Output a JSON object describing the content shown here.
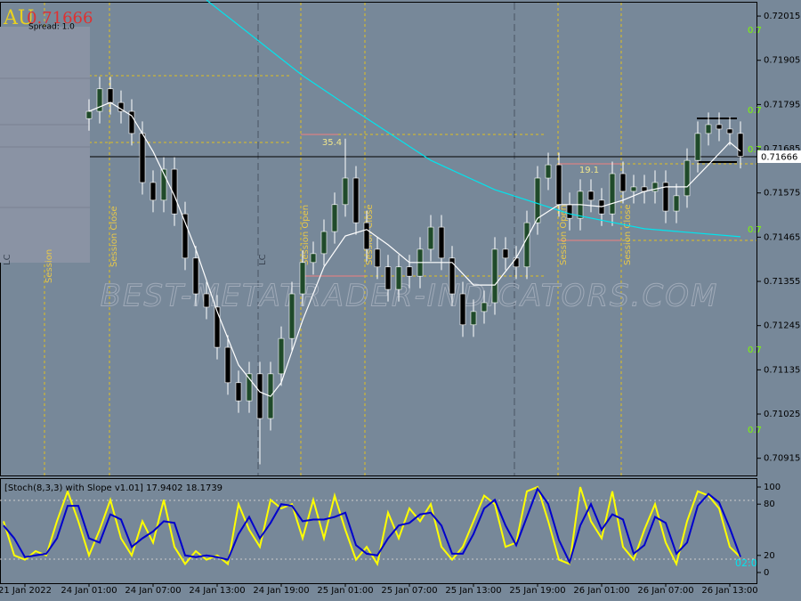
{
  "chart_data": [
    {
      "type": "candlestick",
      "symbol": "AU",
      "spread_label": "Spread: 1.0",
      "last_price": 0.71666,
      "watermark": "BEST-METATRADER-INDICATORS.COM",
      "session_labels": [
        "Session",
        "Session Close",
        "LC",
        "Session Open",
        "Session Close",
        "Session Open",
        "Session Close",
        "LC"
      ],
      "range_labels": [
        35.4,
        19.1
      ],
      "pivot_labels": [
        "0.7",
        "0.7",
        "0.7",
        "0.7",
        "0.7",
        "0.7"
      ],
      "categories": [
        null,
        null,
        "21 Jan 2022",
        null,
        null,
        null,
        null,
        null,
        "24 Jan 01:00",
        null,
        null,
        null,
        null,
        null,
        "24 Jan 07:00",
        null,
        null,
        null,
        null,
        null,
        "24 Jan 13:00",
        null,
        null,
        null,
        null,
        null,
        "24 Jan 19:00",
        null,
        null,
        null,
        null,
        null,
        "25 Jan 01:00",
        null,
        null,
        null,
        null,
        null,
        "25 Jan 07:00",
        null,
        null,
        null,
        null,
        null,
        "25 Jan 13:00",
        null,
        null,
        null,
        null,
        null,
        "25 Jan 19:00",
        null,
        null,
        null,
        null,
        null,
        "26 Jan 01:00",
        null,
        null,
        null,
        null,
        null,
        "26 Jan 07:00",
        null,
        null,
        null,
        null,
        null,
        "26 Jan 13:00",
        null
      ],
      "open": [
        null,
        null,
        null,
        null,
        null,
        null,
        null,
        null,
        0.7176,
        0.71778,
        0.71834,
        0.718,
        0.71778,
        0.71723,
        0.71601,
        0.71557,
        0.71634,
        0.71523,
        0.71413,
        0.71324,
        0.71291,
        0.71191,
        0.71103,
        0.71058,
        0.71125,
        0.71014,
        0.71125,
        0.71213,
        0.71324,
        0.71402,
        0.71424,
        0.71479,
        0.71546,
        0.71612,
        0.71501,
        0.71435,
        0.71391,
        0.71335,
        0.71391,
        0.71368,
        0.71435,
        0.7149,
        0.71413,
        0.71324,
        0.71247,
        0.7128,
        0.71302,
        0.71435,
        0.71413,
        0.71391,
        0.71501,
        0.71612,
        0.71645,
        0.71546,
        0.71512,
        0.71579,
        0.71557,
        0.71523,
        0.71623,
        0.71579,
        0.7159,
        0.71579,
        0.71601,
        0.7153,
        0.71568,
        0.71656,
        0.71723,
        0.71745,
        0.71734,
        0.71723
      ],
      "high": [
        null,
        null,
        null,
        null,
        null,
        null,
        null,
        null,
        0.71808,
        0.71864,
        0.71864,
        0.7183,
        0.71808,
        0.71753,
        0.71631,
        0.71664,
        0.71664,
        0.71553,
        0.71443,
        0.71354,
        0.71321,
        0.71221,
        0.71133,
        0.71155,
        0.71155,
        0.71155,
        0.71243,
        0.71354,
        0.71432,
        0.71454,
        0.71509,
        0.71576,
        0.7171,
        0.71642,
        0.71531,
        0.71465,
        0.71421,
        0.71421,
        0.71421,
        0.71465,
        0.7152,
        0.7152,
        0.71443,
        0.71354,
        0.7131,
        0.71332,
        0.71465,
        0.71465,
        0.71443,
        0.71531,
        0.71642,
        0.71675,
        0.71675,
        0.71576,
        0.71609,
        0.71609,
        0.71587,
        0.71653,
        0.71653,
        0.7162,
        0.7162,
        0.71631,
        0.71631,
        0.71598,
        0.71686,
        0.71753,
        0.71775,
        0.71775,
        0.71764,
        0.71753
      ],
      "low": [
        null,
        null,
        null,
        null,
        null,
        null,
        null,
        null,
        0.7173,
        0.71748,
        0.7177,
        0.71748,
        0.71693,
        0.71571,
        0.71527,
        0.71527,
        0.71493,
        0.71383,
        0.71294,
        0.71261,
        0.71161,
        0.71073,
        0.71028,
        0.71028,
        0.709,
        0.70984,
        0.71095,
        0.71183,
        0.71294,
        0.71372,
        0.71394,
        0.71449,
        0.71516,
        0.71471,
        0.71405,
        0.71361,
        0.71305,
        0.71305,
        0.71338,
        0.71338,
        0.71405,
        0.71383,
        0.71294,
        0.71217,
        0.71217,
        0.7125,
        0.71272,
        0.71383,
        0.71361,
        0.71361,
        0.71471,
        0.71582,
        0.71516,
        0.71482,
        0.71482,
        0.71527,
        0.71493,
        0.71493,
        0.71549,
        0.71549,
        0.71549,
        0.71549,
        0.715,
        0.715,
        0.71538,
        0.71626,
        0.71693,
        0.71704,
        0.71693,
        0.71636
      ],
      "close": [
        null,
        null,
        null,
        null,
        null,
        null,
        null,
        null,
        0.71778,
        0.71834,
        0.718,
        0.71778,
        0.71723,
        0.71601,
        0.71557,
        0.71634,
        0.71523,
        0.71413,
        0.71324,
        0.71291,
        0.71191,
        0.71103,
        0.71058,
        0.71125,
        0.71014,
        0.71125,
        0.71213,
        0.71324,
        0.71402,
        0.71424,
        0.71479,
        0.71546,
        0.71612,
        0.71501,
        0.71435,
        0.71391,
        0.71335,
        0.71391,
        0.71368,
        0.71435,
        0.7149,
        0.71413,
        0.71324,
        0.71247,
        0.7128,
        0.71302,
        0.71435,
        0.71413,
        0.71391,
        0.71501,
        0.71612,
        0.71645,
        0.71546,
        0.71512,
        0.71579,
        0.71557,
        0.71523,
        0.71623,
        0.71579,
        0.7159,
        0.71579,
        0.71601,
        0.7153,
        0.71568,
        0.71656,
        0.71723,
        0.71745,
        0.71734,
        0.71723,
        0.71666
      ],
      "up_color": "#1f4a2a",
      "down_color": "#000000",
      "moving_averages": [
        {
          "color": "#00e5ee",
          "x": [
            19,
            28,
            33,
            40,
            46,
            53,
            60,
            69
          ],
          "values": [
            0.72055,
            0.71867,
            0.71778,
            0.71656,
            0.71583,
            0.71523,
            0.71486,
            0.71466
          ]
        },
        {
          "color": "#ffffff",
          "x": [
            8,
            10,
            12,
            14,
            16,
            18,
            20,
            22,
            24,
            25,
            26,
            28,
            30,
            32,
            34,
            36,
            38,
            40,
            42,
            44,
            46,
            48,
            50,
            52,
            54,
            56,
            58,
            60,
            62,
            64,
            66,
            68,
            69
          ],
          "values": [
            0.71778,
            0.718,
            0.71767,
            0.71678,
            0.71568,
            0.71435,
            0.7128,
            0.71147,
            0.7108,
            0.71069,
            0.71103,
            0.71258,
            0.71391,
            0.71468,
            0.71484,
            0.71446,
            0.71402,
            0.71402,
            0.71402,
            0.71346,
            0.71346,
            0.71413,
            0.71512,
            0.71546,
            0.71546,
            0.71541,
            0.71557,
            0.71579,
            0.7159,
            0.7159,
            0.71645,
            0.71701,
            0.71679
          ]
        }
      ],
      "ylim": [
        0.7087,
        0.72055
      ],
      "yticks": [
        0.72015,
        0.71905,
        0.71795,
        0.71685,
        0.71575,
        0.71465,
        0.71355,
        0.71245,
        0.71135,
        0.71025,
        0.70915
      ]
    },
    {
      "type": "line",
      "title": "[Stoch(8,3,3) with Slope v1.01]",
      "countdown": "02:0",
      "series": [
        {
          "color": "#ffff00",
          "values": [
            60,
            20,
            15,
            25,
            20,
            60,
            95,
            60,
            20,
            50,
            85,
            40,
            20,
            60,
            35,
            85,
            30,
            10,
            25,
            15,
            20,
            10,
            80,
            50,
            30,
            85,
            75,
            80,
            40,
            85,
            40,
            90,
            50,
            15,
            30,
            10,
            70,
            40,
            75,
            60,
            80,
            30,
            15,
            30,
            60,
            90,
            80,
            30,
            35,
            95,
            100,
            60,
            15,
            10,
            100,
            60,
            40,
            95,
            30,
            15,
            50,
            80,
            35,
            10,
            60,
            95,
            90,
            75,
            30,
            17.9402
          ]
        },
        {
          "color": "#0000cc",
          "values": [
            55,
            40,
            18,
            20,
            22,
            40,
            78,
            78,
            40,
            35,
            68,
            62,
            30,
            40,
            48,
            60,
            58,
            20,
            18,
            20,
            18,
            15,
            45,
            65,
            40,
            58,
            80,
            78,
            60,
            62,
            62,
            65,
            70,
            32,
            22,
            20,
            40,
            55,
            58,
            68,
            70,
            55,
            22,
            22,
            45,
            75,
            85,
            55,
            32,
            65,
            98,
            80,
            38,
            12,
            55,
            80,
            50,
            68,
            62,
            22,
            32,
            65,
            58,
            22,
            35,
            78,
            92,
            82,
            52,
            18.1739
          ]
        }
      ],
      "ylim": [
        -12.5,
        107.3
      ],
      "yticks": [
        0,
        20,
        80,
        100
      ]
    }
  ]
}
